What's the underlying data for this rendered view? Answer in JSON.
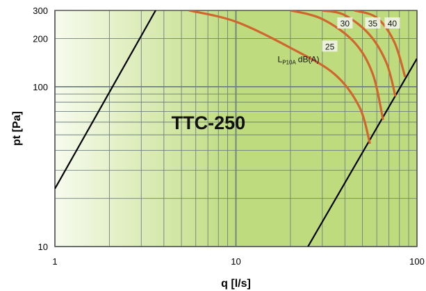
{
  "chart_data": {
    "type": "line",
    "title": "TTC-250",
    "xlabel": "q [l/s]",
    "ylabel": "pt [Pa]",
    "xscale": "log",
    "yscale": "log",
    "xlim": [
      1,
      100
    ],
    "ylim": [
      10,
      300
    ],
    "x_ticks": [
      "1",
      "10",
      "100"
    ],
    "y_ticks": [
      "10",
      "100",
      "200",
      "300"
    ],
    "grid": true,
    "series_label": {
      "main": "L",
      "sub": "P10A",
      "unit": "dB(A)"
    },
    "colors": {
      "curve": "#d0662e",
      "limit_line": "#000000",
      "background_light": "#f7fbee",
      "background_dark": "#bedc7e",
      "grid": "#6e7f80"
    },
    "limit_lines": [
      {
        "points": [
          [
            1,
            23
          ],
          [
            3.6,
            300
          ]
        ]
      },
      {
        "points": [
          [
            25,
            10
          ],
          [
            100,
            150
          ]
        ]
      }
    ],
    "series": [
      {
        "name": "25",
        "points": [
          [
            5.5,
            300
          ],
          [
            10,
            255
          ],
          [
            20,
            175
          ],
          [
            35,
            120
          ],
          [
            48,
            75
          ],
          [
            55,
            44
          ]
        ]
      },
      {
        "name": "30",
        "points": [
          [
            20,
            300
          ],
          [
            30,
            265
          ],
          [
            45,
            190
          ],
          [
            57,
            120
          ],
          [
            65,
            62
          ]
        ]
      },
      {
        "name": "35",
        "points": [
          [
            30,
            300
          ],
          [
            40,
            280
          ],
          [
            55,
            210
          ],
          [
            68,
            140
          ],
          [
            76,
            87
          ]
        ]
      },
      {
        "name": "40",
        "points": [
          [
            45,
            300
          ],
          [
            60,
            270
          ],
          [
            75,
            190
          ],
          [
            86,
            115
          ]
        ]
      }
    ]
  }
}
